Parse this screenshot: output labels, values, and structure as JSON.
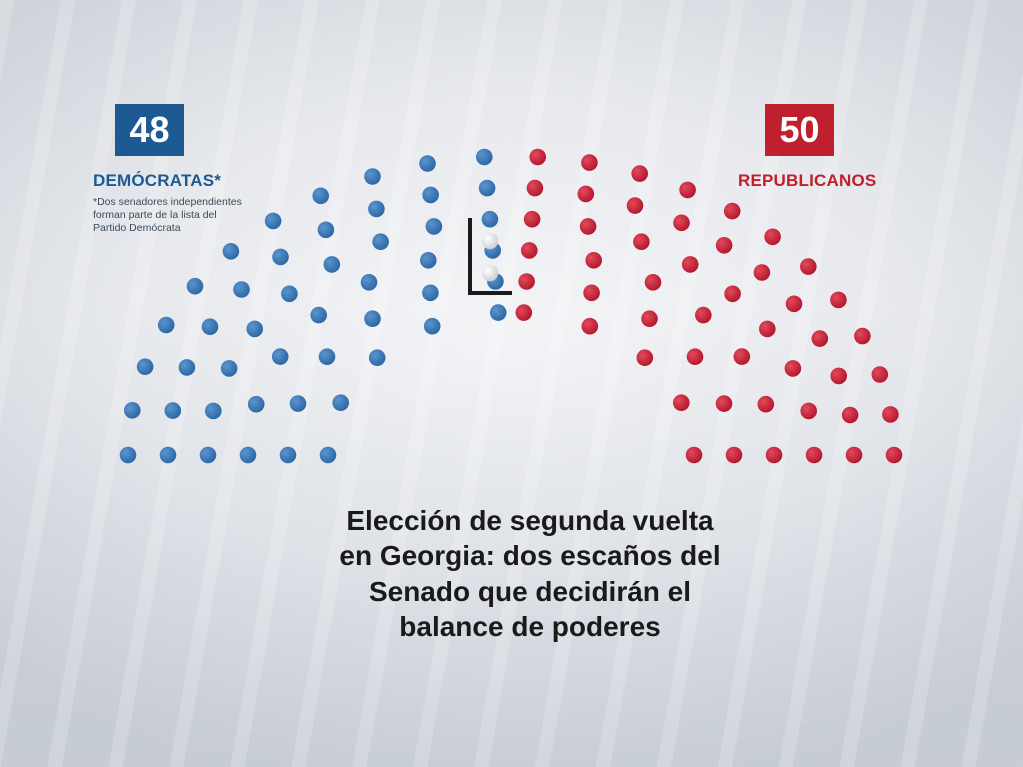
{
  "parties": {
    "dem": {
      "count": "48",
      "label": "DEMÓCRATAS*",
      "color": "#3a76b4",
      "footnote": "*Dos senadores independientes\nforman parte de la lista del\nPartido Demócrata"
    },
    "rep": {
      "count": "50",
      "label": "REPUBLICANOS",
      "color": "#c8213a"
    },
    "undecided": {
      "count": 2,
      "color": "#e6e7ea"
    }
  },
  "headline": "Elección de segunda vuelta\nen Georgia: dos escaños del\nSenado que decidirán el\nbalance de poderes"
}
